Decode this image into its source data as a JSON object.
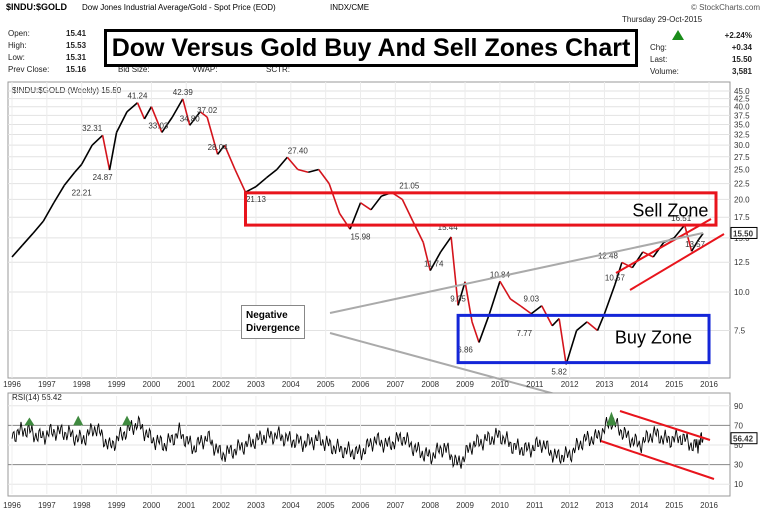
{
  "header": {
    "symbol": "$INDU:$GOLD",
    "description": "Dow Jones Industrial Average/Gold - Spot Price (EOD)",
    "exchange": "INDX/CME",
    "watermark": "© StockCharts.com",
    "date": "Thursday 29-Oct-2015",
    "stats": {
      "open_label": "Open:",
      "open": "15.41",
      "high_label": "High:",
      "high": "15.53",
      "low_label": "Low:",
      "low": "15.31",
      "prev_label": "Prev Close:",
      "prev": "15.16",
      "bid_label": "Bid Size:",
      "vwap_label": "VWAP:",
      "sctr_label": "SCTR:",
      "chg_pct": "+2.24%",
      "chg_label": "Chg:",
      "chg": "+0.34",
      "last_label": "Last:",
      "last": "15.50",
      "volume_label": "Volume:",
      "volume": "3,581"
    },
    "up_color": "#1a8c1a"
  },
  "title": "Dow Versus Gold Buy And Sell Zones Chart",
  "annotations": {
    "sell_zone": "Sell Zone",
    "buy_zone": "Buy Zone",
    "divergence_line1": "Negative",
    "divergence_line2": "Divergence"
  },
  "colors": {
    "sell_zone": "#e8141c",
    "buy_zone": "#1426d8",
    "channel": "#e8141c",
    "up_bar": "#000000",
    "down_bar": "#d4141c",
    "rsi_line": "#000000",
    "overbought_fill": "#3f8a3f"
  },
  "chart_data": [
    {
      "type": "line",
      "title": "$INDU:$GOLD (Weekly) 15.50",
      "x_label_ticks": [
        "1996",
        "1997",
        "1998",
        "1999",
        "2000",
        "2001",
        "2002",
        "2003",
        "2004",
        "2005",
        "2006",
        "2007",
        "2008",
        "2009",
        "2010",
        "2011",
        "2012",
        "2013",
        "2014",
        "2015",
        "2016"
      ],
      "y_ticks": [
        7.5,
        10.0,
        12.5,
        15.0,
        17.5,
        20.0,
        22.5,
        25.0,
        27.5,
        30.0,
        32.5,
        35.0,
        37.5,
        40.0,
        42.5,
        45.0
      ],
      "y_scale": "log",
      "ylim": [
        5.5,
        46
      ],
      "last_value_tag": "15.50",
      "series": [
        {
          "name": "",
          "x": [
            1996.0,
            1996.3,
            1996.6,
            1996.9,
            1997.2,
            1997.5,
            1997.8,
            1998.0,
            1998.3,
            1998.6,
            1998.8,
            1999.0,
            1999.3,
            1999.6,
            1999.8,
            2000.0,
            2000.3,
            2000.6,
            2000.9,
            2001.1,
            2001.4,
            2001.6,
            2001.9,
            2002.1,
            2002.4,
            2002.7,
            2003.0,
            2003.3,
            2003.6,
            2003.9,
            2004.2,
            2004.5,
            2004.8,
            2005.1,
            2005.4,
            2005.7,
            2006.0,
            2006.3,
            2006.6,
            2006.9,
            2007.2,
            2007.5,
            2007.8,
            2008.0,
            2008.3,
            2008.6,
            2008.8,
            2009.0,
            2009.2,
            2009.4,
            2009.7,
            2010.0,
            2010.3,
            2010.6,
            2010.9,
            2011.2,
            2011.5,
            2011.7,
            2011.9,
            2012.2,
            2012.5,
            2012.8,
            2013.0,
            2013.3,
            2013.5,
            2013.8,
            2014.1,
            2014.4,
            2014.7,
            2015.0,
            2015.3,
            2015.5,
            2015.7,
            2015.83
          ],
          "values": [
            13.0,
            14.2,
            15.5,
            17.0,
            19.5,
            22.2,
            24.5,
            26.0,
            30.0,
            32.3,
            24.9,
            33.0,
            38.5,
            41.2,
            36.5,
            40.0,
            33.0,
            37.0,
            42.4,
            34.8,
            38.5,
            37.0,
            28.0,
            30.0,
            25.0,
            21.1,
            22.0,
            23.5,
            25.0,
            27.4,
            25.0,
            24.5,
            25.0,
            22.5,
            18.0,
            16.0,
            19.5,
            18.5,
            20.5,
            21.05,
            20.0,
            17.0,
            14.5,
            11.74,
            13.5,
            15.1,
            9.05,
            10.8,
            8.0,
            6.86,
            8.5,
            10.84,
            9.5,
            9.0,
            8.5,
            9.03,
            7.77,
            8.2,
            5.82,
            7.5,
            8.0,
            7.5,
            8.5,
            10.57,
            12.48,
            12.0,
            13.5,
            13.0,
            14.5,
            15.0,
            16.51,
            13.57,
            14.8,
            15.5
          ]
        }
      ],
      "point_labels": [
        {
          "x": 1998.0,
          "label": "22.21"
        },
        {
          "x": 1998.6,
          "label": "24.87"
        },
        {
          "x": 1998.3,
          "label": "32.31"
        },
        {
          "x": 1999.6,
          "label": "41.24"
        },
        {
          "x": 2000.2,
          "label": "33.03"
        },
        {
          "x": 2000.9,
          "label": "42.39"
        },
        {
          "x": 2001.1,
          "label": "34.80"
        },
        {
          "x": 2001.6,
          "label": "37.02"
        },
        {
          "x": 2001.9,
          "label": "28.04"
        },
        {
          "x": 2003.0,
          "label": "21.13"
        },
        {
          "x": 2004.2,
          "label": "27.40"
        },
        {
          "x": 2006.0,
          "label": "15.98"
        },
        {
          "x": 2007.4,
          "label": "21.05"
        },
        {
          "x": 2008.5,
          "label": "15.44"
        },
        {
          "x": 2008.1,
          "label": "11.74"
        },
        {
          "x": 2008.8,
          "label": "9.05"
        },
        {
          "x": 2009.0,
          "label": "6.86"
        },
        {
          "x": 2010.0,
          "label": "10.84"
        },
        {
          "x": 2010.9,
          "label": "9.03"
        },
        {
          "x": 2010.7,
          "label": "7.77"
        },
        {
          "x": 2011.7,
          "label": "5.82"
        },
        {
          "x": 2013.3,
          "label": "10.57"
        },
        {
          "x": 2013.1,
          "label": "12.48"
        },
        {
          "x": 2015.2,
          "label": "16.51"
        },
        {
          "x": 2015.6,
          "label": "13.57"
        }
      ],
      "sell_zone": {
        "y_low": 16.5,
        "y_high": 21.0,
        "x_from": 2002.7,
        "x_to": 2016.2
      },
      "buy_zone": {
        "y_low": 5.9,
        "y_high": 8.4,
        "x_from": 2008.8,
        "x_to": 2016.0
      }
    },
    {
      "type": "line",
      "title": "RSI(14) 56.42",
      "x_label_ticks": [
        "1996",
        "1997",
        "1998",
        "1999",
        "2000",
        "2001",
        "2002",
        "2003",
        "2004",
        "2005",
        "2006",
        "2007",
        "2008",
        "2009",
        "2010",
        "2011",
        "2012",
        "2013",
        "2014",
        "2015",
        "2016"
      ],
      "y_ticks": [
        10,
        30,
        50,
        70,
        90
      ],
      "ylim": [
        0,
        100
      ],
      "reference_lines": [
        30,
        70
      ],
      "last_value_tag": "56.42",
      "series": [
        {
          "name": "",
          "x": [
            1996.0,
            1996.4,
            1996.8,
            1997.2,
            1997.6,
            1998.0,
            1998.4,
            1998.8,
            1999.2,
            1999.6,
            2000.0,
            2000.4,
            2000.8,
            2001.2,
            2001.6,
            2002.0,
            2002.4,
            2002.8,
            2003.2,
            2003.6,
            2004.0,
            2004.4,
            2004.8,
            2005.2,
            2005.6,
            2006.0,
            2006.4,
            2006.8,
            2007.2,
            2007.6,
            2008.0,
            2008.4,
            2008.8,
            2009.2,
            2009.6,
            2010.0,
            2010.4,
            2010.8,
            2011.2,
            2011.6,
            2012.0,
            2012.4,
            2012.8,
            2013.2,
            2013.6,
            2014.0,
            2014.4,
            2014.8,
            2015.2,
            2015.6,
            2015.83
          ],
          "values": [
            60,
            66,
            58,
            64,
            62,
            55,
            68,
            48,
            62,
            72,
            56,
            50,
            63,
            47,
            58,
            40,
            45,
            52,
            58,
            60,
            55,
            52,
            56,
            48,
            44,
            42,
            55,
            50,
            58,
            45,
            38,
            48,
            30,
            50,
            55,
            60,
            48,
            45,
            52,
            38,
            40,
            55,
            58,
            75,
            60,
            50,
            62,
            55,
            58,
            48,
            56.42
          ]
        }
      ]
    }
  ]
}
